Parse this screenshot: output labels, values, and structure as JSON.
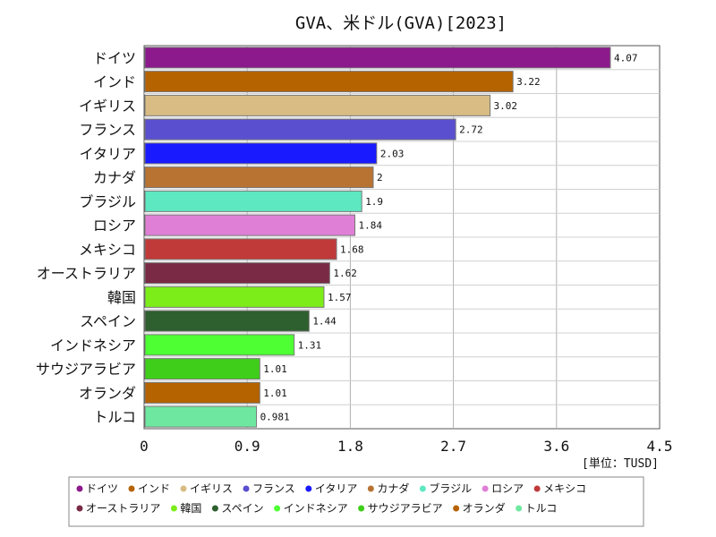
{
  "chart_data": {
    "type": "bar",
    "orientation": "horizontal",
    "title": "GVA、米ドル(GVA)[2023]",
    "unit": "[単位：TUSD]",
    "xlim": [
      0,
      4.5
    ],
    "xticks": [
      0,
      0.9,
      1.8,
      2.7,
      3.6,
      4.5
    ],
    "xtick_labels": [
      "0",
      "0.9",
      "1.8",
      "2.7",
      "3.6",
      "4.5"
    ],
    "grid": true,
    "legend_position": "bottom",
    "categories": [
      "ドイツ",
      "インド",
      "イギリス",
      "フランス",
      "イタリア",
      "カナダ",
      "ブラジル",
      "ロシア",
      "メキシコ",
      "オーストラリア",
      "韓国",
      "スペイン",
      "インドネシア",
      "サウジアラビア",
      "オランダ",
      "トルコ"
    ],
    "values": [
      4.07,
      3.22,
      3.02,
      2.72,
      2.03,
      2,
      1.9,
      1.84,
      1.68,
      1.62,
      1.57,
      1.44,
      1.31,
      1.01,
      1.01,
      0.981
    ],
    "value_labels": [
      "4.07",
      "3.22",
      "3.02",
      "2.72",
      "2.03",
      "2",
      "1.9",
      "1.84",
      "1.68",
      "1.62",
      "1.57",
      "1.44",
      "1.31",
      "1.01",
      "1.01",
      "0.981"
    ],
    "colors": [
      "#8c1a8c",
      "#b56200",
      "#d8bc84",
      "#5a4fcf",
      "#1a1aff",
      "#b87333",
      "#5ee8c2",
      "#e07fd6",
      "#c03a3a",
      "#7a2a45",
      "#7ded1a",
      "#2e5f2e",
      "#4dff33",
      "#3fcf1a",
      "#b56200",
      "#6ee8a0"
    ]
  }
}
